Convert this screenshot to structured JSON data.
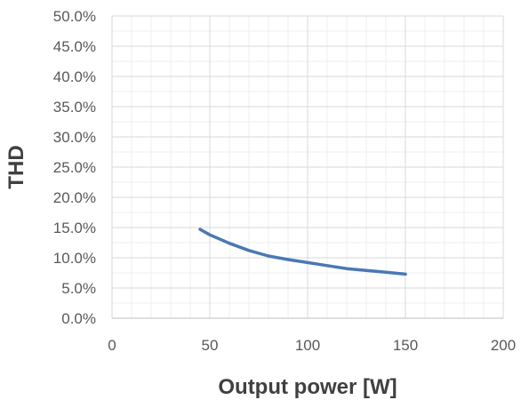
{
  "chart_data": {
    "type": "line",
    "title": "",
    "xlabel": "Output power [W]",
    "ylabel": "THD",
    "xlim": [
      0,
      200
    ],
    "ylim": [
      0,
      0.5
    ],
    "x_ticks": [
      0,
      50,
      100,
      150,
      200
    ],
    "x_tick_labels": [
      "0",
      "50",
      "100",
      "150",
      "200"
    ],
    "y_ticks": [
      0,
      0.05,
      0.1,
      0.15,
      0.2,
      0.25,
      0.3,
      0.35,
      0.4,
      0.45,
      0.5
    ],
    "y_tick_labels": [
      "0.0%",
      "5.0%",
      "10.0%",
      "15.0%",
      "20.0%",
      "25.0%",
      "30.0%",
      "35.0%",
      "40.0%",
      "45.0%",
      "50.0%"
    ],
    "grid": true,
    "legend": "none",
    "series": [
      {
        "color": "#4a78b5",
        "x": [
          45,
          50,
          60,
          70,
          80,
          90,
          100,
          110,
          120,
          130,
          140,
          150
        ],
        "y": [
          0.147,
          0.138,
          0.124,
          0.112,
          0.103,
          0.097,
          0.092,
          0.087,
          0.082,
          0.079,
          0.076,
          0.073
        ]
      }
    ]
  }
}
